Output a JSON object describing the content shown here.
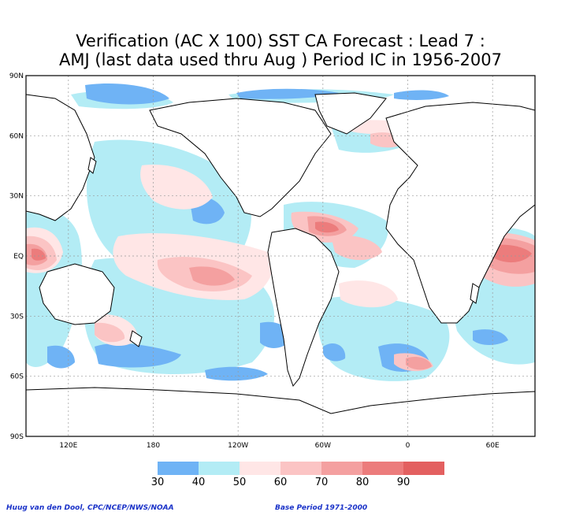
{
  "title": {
    "line1": "Verification (AC X 100) SST CA Forecast : Lead 7 :",
    "line2": "AMJ (last data used thru Aug ) Period IC in 1956-2007"
  },
  "map": {
    "lat_labels": [
      "90N",
      "60N",
      "30N",
      "EQ",
      "30S",
      "60S",
      "90S"
    ],
    "lon_labels": [
      "120E",
      "180",
      "120W",
      "60W",
      "0",
      "60E"
    ]
  },
  "colorbar": {
    "colors": [
      "#6fb3f5",
      "#b3ecf5",
      "#ffe6e6",
      "#fbc4c4",
      "#f4a0a0",
      "#ec7c7c",
      "#e36060"
    ],
    "labels": [
      "30",
      "40",
      "50",
      "60",
      "70",
      "80",
      "90"
    ]
  },
  "credits": {
    "left": "Huug van den Dool, CPC/NCEP/NWS/NOAA",
    "right": "Base Period 1971-2000"
  }
}
